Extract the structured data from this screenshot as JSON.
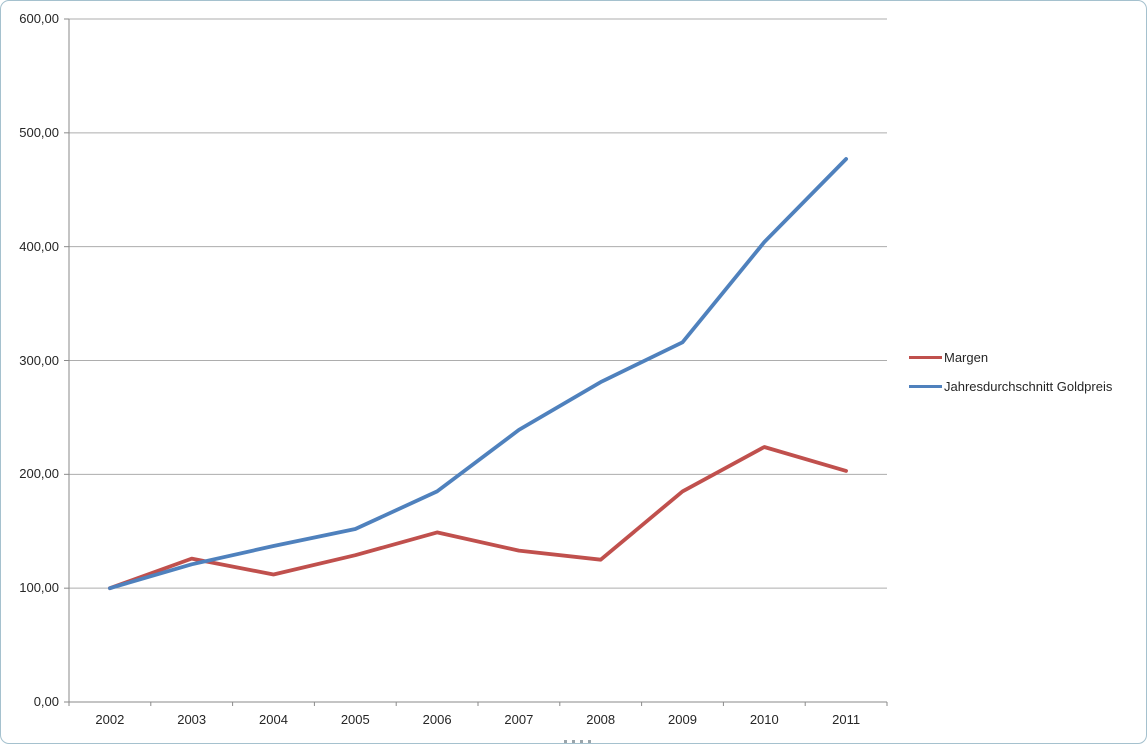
{
  "chart_area": {
    "background": "#FFFFFF",
    "border_color": "#A5C1CE"
  },
  "chart_data": {
    "type": "line",
    "title": "",
    "xlabel": "",
    "ylabel": "",
    "categories": [
      "2002",
      "2003",
      "2004",
      "2005",
      "2006",
      "2007",
      "2008",
      "2009",
      "2010",
      "2011"
    ],
    "series": [
      {
        "name": "Margen",
        "color": "#C0504D",
        "values": [
          100,
          126,
          112,
          129,
          149,
          133,
          125,
          185,
          224,
          203
        ]
      },
      {
        "name": "Jahresdurchschnitt Goldpreis",
        "color": "#4F81BD",
        "values": [
          100,
          121,
          137,
          152,
          185,
          239,
          281,
          316,
          404,
          477
        ]
      }
    ],
    "ylim": [
      0,
      600
    ],
    "y_tick_step": 100,
    "y_tick_labels": [
      "600,00",
      "500,00",
      "400,00",
      "300,00",
      "200,00",
      "100,00",
      "0,00"
    ],
    "grid": true,
    "legend_position": "right",
    "gridline_color": "#ADADAD",
    "axis_color": "#8A8A8A",
    "label_color": "#262626"
  },
  "selection_handle": {
    "present": true
  }
}
